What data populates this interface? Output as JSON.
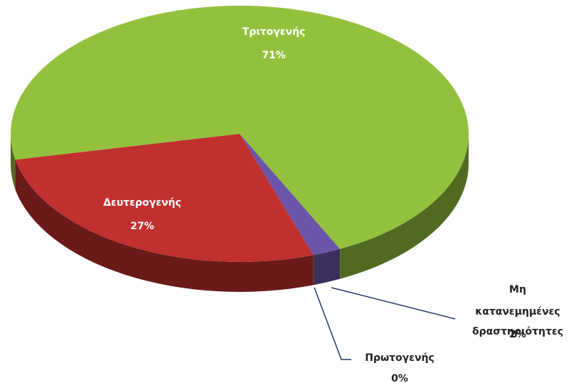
{
  "chart_data": {
    "type": "pie3d",
    "categories": [
      "Πρωτογενής",
      "Μη κατανεμημένες δραστηριότητες",
      "Δευτερογενής",
      "Τριτογενής"
    ],
    "values": [
      0,
      2,
      27,
      71
    ],
    "value_labels": [
      "0%",
      "2%",
      "27%",
      "71%"
    ],
    "colors": [
      "#4a7ebb",
      "#6b55a8",
      "#c0302e",
      "#93c13e"
    ]
  }
}
